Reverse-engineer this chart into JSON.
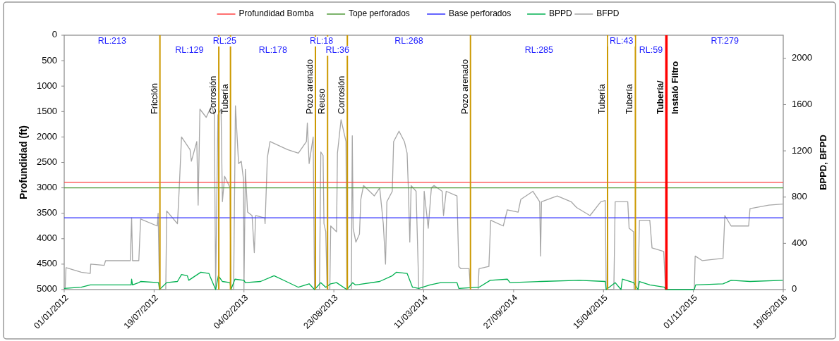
{
  "chart_data": {
    "type": "line",
    "ylabel": "Profundidad (ft)",
    "y2label": "BPPD, BFPD",
    "xlim": [
      "2012-01-01",
      "2016-05-19"
    ],
    "xticks": [
      {
        "value": "2012-01-01",
        "label": "01/01/2012"
      },
      {
        "value": "2012-07-19",
        "label": "19/07/2012"
      },
      {
        "value": "2013-02-04",
        "label": "04/02/2013"
      },
      {
        "value": "2013-08-23",
        "label": "23/08/2013"
      },
      {
        "value": "2014-03-11",
        "label": "11/03/2014"
      },
      {
        "value": "2014-09-27",
        "label": "27/09/2014"
      },
      {
        "value": "2015-04-15",
        "label": "15/04/2015"
      },
      {
        "value": "2015-11-01",
        "label": "01/11/2015"
      },
      {
        "value": "2016-05-19",
        "label": "19/05/2016"
      }
    ],
    "ylim": [
      5000,
      0
    ],
    "yticks": [
      0,
      500,
      1000,
      1500,
      2000,
      2500,
      3000,
      3500,
      4000,
      4500,
      5000
    ],
    "y2lim": [
      0,
      2200
    ],
    "y2ticks": [
      0,
      400,
      800,
      1200,
      1600,
      2000
    ],
    "legend": "top",
    "marker": "none",
    "series": [
      {
        "name": "Profundidad Bomba",
        "color": "#ff4040",
        "x": [
          "2012-01-01",
          "2016-05-19"
        ],
        "values": [
          2890,
          2890
        ]
      },
      {
        "name": "Tope perforados",
        "color": "#4f9a3a",
        "x": [
          "2012-01-01",
          "2016-05-19"
        ],
        "values": [
          3000,
          3000
        ]
      },
      {
        "name": "Base perforados",
        "color": "#3030ff",
        "x": [
          "2012-01-01",
          "2016-05-19"
        ],
        "values": [
          3590,
          3590
        ]
      },
      {
        "name": "BPPD",
        "color": "#00b050",
        "axis": "y2",
        "x": [
          "2012-01-01",
          "2012-02-08",
          "2012-02-28",
          "2012-05-29",
          "2012-05-30",
          "2012-06-01",
          "2012-06-15",
          "2012-06-19",
          "2012-07-29",
          "2012-07-31",
          "2012-08-16",
          "2012-09-09",
          "2012-09-18",
          "2012-10-01",
          "2012-10-04",
          "2012-10-31",
          "2012-11-18",
          "2012-11-21",
          "2012-12-03",
          "2012-12-09",
          "2012-12-18",
          "2013-01-04",
          "2013-01-06",
          "2013-01-15",
          "2013-02-04",
          "2013-02-07",
          "2013-03-13",
          "2013-04-12",
          "2013-05-09",
          "2013-06-05",
          "2013-06-29",
          "2013-07-11",
          "2013-07-25",
          "2013-08-05",
          "2013-08-16",
          "2013-08-29",
          "2013-09-21",
          "2013-10-04",
          "2013-10-10",
          "2013-12-03",
          "2013-12-31",
          "2014-01-09",
          "2014-02-02",
          "2014-02-14",
          "2014-02-28",
          "2014-03-25",
          "2014-04-18",
          "2014-05-24",
          "2014-05-28",
          "2014-07-12",
          "2014-08-06",
          "2014-09-13",
          "2014-09-19",
          "2014-11-27",
          "2015-02-20",
          "2015-04-19",
          "2015-04-21",
          "2015-05-11",
          "2015-05-24",
          "2015-05-27",
          "2015-06-21",
          "2015-07-01",
          "2015-07-04",
          "2015-07-27",
          "2015-08-29",
          "2015-08-31",
          "2015-11-03",
          "2015-11-06",
          "2016-01-06",
          "2016-01-24",
          "2016-03-06",
          "2016-05-18"
        ],
        "values": [
          10,
          20,
          40,
          40,
          90,
          40,
          60,
          70,
          60,
          0,
          60,
          70,
          130,
          120,
          80,
          150,
          140,
          110,
          0,
          120,
          70,
          60,
          0,
          90,
          80,
          60,
          70,
          120,
          70,
          20,
          50,
          0,
          60,
          20,
          50,
          60,
          0,
          60,
          40,
          70,
          120,
          150,
          140,
          20,
          10,
          40,
          60,
          60,
          10,
          20,
          80,
          90,
          60,
          70,
          80,
          70,
          0,
          60,
          0,
          90,
          60,
          0,
          70,
          40,
          20,
          0,
          0,
          40,
          50,
          80,
          70,
          80
        ]
      },
      {
        "name": "BFPD",
        "color": "#a6a6a6",
        "axis": "y2",
        "x": [
          "2012-01-03",
          "2012-01-05",
          "2012-02-08",
          "2012-02-28",
          "2012-02-29",
          "2012-03-30",
          "2012-04-02",
          "2012-05-27",
          "2012-05-30",
          "2012-06-01",
          "2012-06-15",
          "2012-06-19",
          "2012-07-26",
          "2012-07-28",
          "2012-07-31",
          "2012-08-14",
          "2012-08-16",
          "2012-09-09",
          "2012-09-13",
          "2012-09-18",
          "2012-10-07",
          "2012-10-10",
          "2012-10-22",
          "2012-10-25",
          "2012-10-29",
          "2012-11-12",
          "2012-11-24",
          "2012-11-30",
          "2012-12-03",
          "2012-12-08",
          "2012-12-15",
          "2012-12-18",
          "2012-12-23",
          "2013-01-04",
          "2013-01-06",
          "2013-01-12",
          "2013-01-16",
          "2013-01-23",
          "2013-01-29",
          "2013-02-03",
          "2013-02-04",
          "2013-02-07",
          "2013-02-12",
          "2013-02-22",
          "2013-02-27",
          "2013-03-02",
          "2013-03-22",
          "2013-03-23",
          "2013-03-28",
          "2013-04-03",
          "2013-05-12",
          "2013-06-05",
          "2013-06-23",
          "2013-06-25",
          "2013-06-29",
          "2013-07-08",
          "2013-07-11",
          "2013-07-22",
          "2013-07-25",
          "2013-07-30",
          "2013-08-01",
          "2013-08-05",
          "2013-08-08",
          "2013-08-14",
          "2013-08-16",
          "2013-08-29",
          "2013-08-31",
          "2013-09-08",
          "2013-09-19",
          "2013-09-21",
          "2013-10-01",
          "2013-10-03",
          "2013-10-05",
          "2013-10-11",
          "2013-10-19",
          "2013-10-22",
          "2013-10-28",
          "2013-11-21",
          "2013-12-03",
          "2013-12-11",
          "2013-12-16",
          "2013-12-19",
          "2013-12-31",
          "2014-01-03",
          "2014-01-15",
          "2014-01-27",
          "2014-02-02",
          "2014-02-05",
          "2014-02-08",
          "2014-02-11",
          "2014-02-22",
          "2014-02-28",
          "2014-03-09",
          "2014-03-12",
          "2014-03-21",
          "2014-03-28",
          "2014-04-03",
          "2014-04-21",
          "2014-04-24",
          "2014-04-30",
          "2014-05-24",
          "2014-05-28",
          "2014-06-02",
          "2014-06-20",
          "2014-06-23",
          "2014-07-10",
          "2014-07-12",
          "2014-08-03",
          "2014-08-07",
          "2014-09-04",
          "2014-09-13",
          "2014-10-07",
          "2014-10-13",
          "2014-11-09",
          "2014-11-24",
          "2014-11-26",
          "2014-11-28",
          "2015-01-02",
          "2015-02-02",
          "2015-02-14",
          "2015-03-16",
          "2015-04-09",
          "2015-04-19",
          "2015-04-21",
          "2015-05-08",
          "2015-05-11",
          "2015-06-08",
          "2015-06-11",
          "2015-06-21",
          "2015-06-22",
          "2015-07-01",
          "2015-07-04",
          "2015-07-27",
          "2015-08-01",
          "2015-08-27",
          "2015-08-31",
          "2015-11-03",
          "2015-11-05",
          "2015-11-21",
          "2016-01-06",
          "2016-01-10",
          "2016-01-24",
          "2016-03-03",
          "2016-03-06",
          "2016-04-17",
          "2016-05-18"
        ],
        "values": [
          0,
          190,
          150,
          140,
          220,
          210,
          250,
          250,
          620,
          250,
          250,
          610,
          550,
          660,
          0,
          0,
          680,
          570,
          880,
          1320,
          1210,
          1110,
          1280,
          730,
          1560,
          1490,
          1590,
          1510,
          0,
          1510,
          1560,
          760,
          980,
          880,
          0,
          0,
          1590,
          1090,
          1110,
          950,
          0,
          1040,
          670,
          640,
          320,
          640,
          620,
          570,
          1140,
          1280,
          1210,
          1180,
          1280,
          1440,
          1090,
          1320,
          0,
          0,
          1190,
          1160,
          570,
          500,
          0,
          0,
          550,
          500,
          1180,
          1470,
          1280,
          0,
          0,
          1330,
          530,
          410,
          480,
          780,
          900,
          810,
          880,
          570,
          220,
          760,
          850,
          1280,
          1370,
          1280,
          1180,
          850,
          410,
          900,
          850,
          0,
          0,
          850,
          530,
          880,
          900,
          850,
          640,
          850,
          810,
          200,
          180,
          180,
          0,
          0,
          180,
          200,
          600,
          550,
          690,
          670,
          780,
          850,
          760,
          290,
          760,
          810,
          760,
          710,
          640,
          760,
          770,
          0,
          0,
          760,
          760,
          530,
          500,
          0,
          0,
          600,
          600,
          360,
          330,
          0,
          0,
          290,
          250,
          270,
          640,
          550,
          550,
          700,
          730,
          740
        ]
      }
    ],
    "ref_lines": [
      {
        "axis": "x",
        "value": "2012-08-01",
        "label": "Fricción",
        "color": "#cc9900"
      },
      {
        "axis": "x",
        "value": "2012-12-10",
        "label": "Corrosión",
        "color": "#cc9900"
      },
      {
        "axis": "x",
        "value": "2013-01-05",
        "label": "Tubería",
        "color": "#cc9900"
      },
      {
        "axis": "x",
        "value": "2013-07-13",
        "label": "Pozo arenado",
        "color": "#cc9900"
      },
      {
        "axis": "x",
        "value": "2013-08-09",
        "label": "Reuso",
        "color": "#cc9900"
      },
      {
        "axis": "x",
        "value": "2013-09-22",
        "label": "Corrosión",
        "color": "#cc9900"
      },
      {
        "axis": "x",
        "value": "2014-06-23",
        "label": "Pozo arenado",
        "color": "#cc9900"
      },
      {
        "axis": "x",
        "value": "2015-04-24",
        "label": "Tubería",
        "color": "#cc9900"
      },
      {
        "axis": "x",
        "value": "2015-06-25",
        "label": "Tubería",
        "color": "#cc9900"
      },
      {
        "axis": "x",
        "value": "2015-09-02",
        "label": "Tubería/\nInstaló Filtro",
        "color": "#ff0000"
      }
    ],
    "annotations": [
      "RL:213",
      "RL:129",
      "RL:25",
      "RL:178",
      "RL:18",
      "RL:36",
      "RL:268",
      "RL:285",
      "RL:43",
      "RL:59",
      "RT:279"
    ]
  }
}
